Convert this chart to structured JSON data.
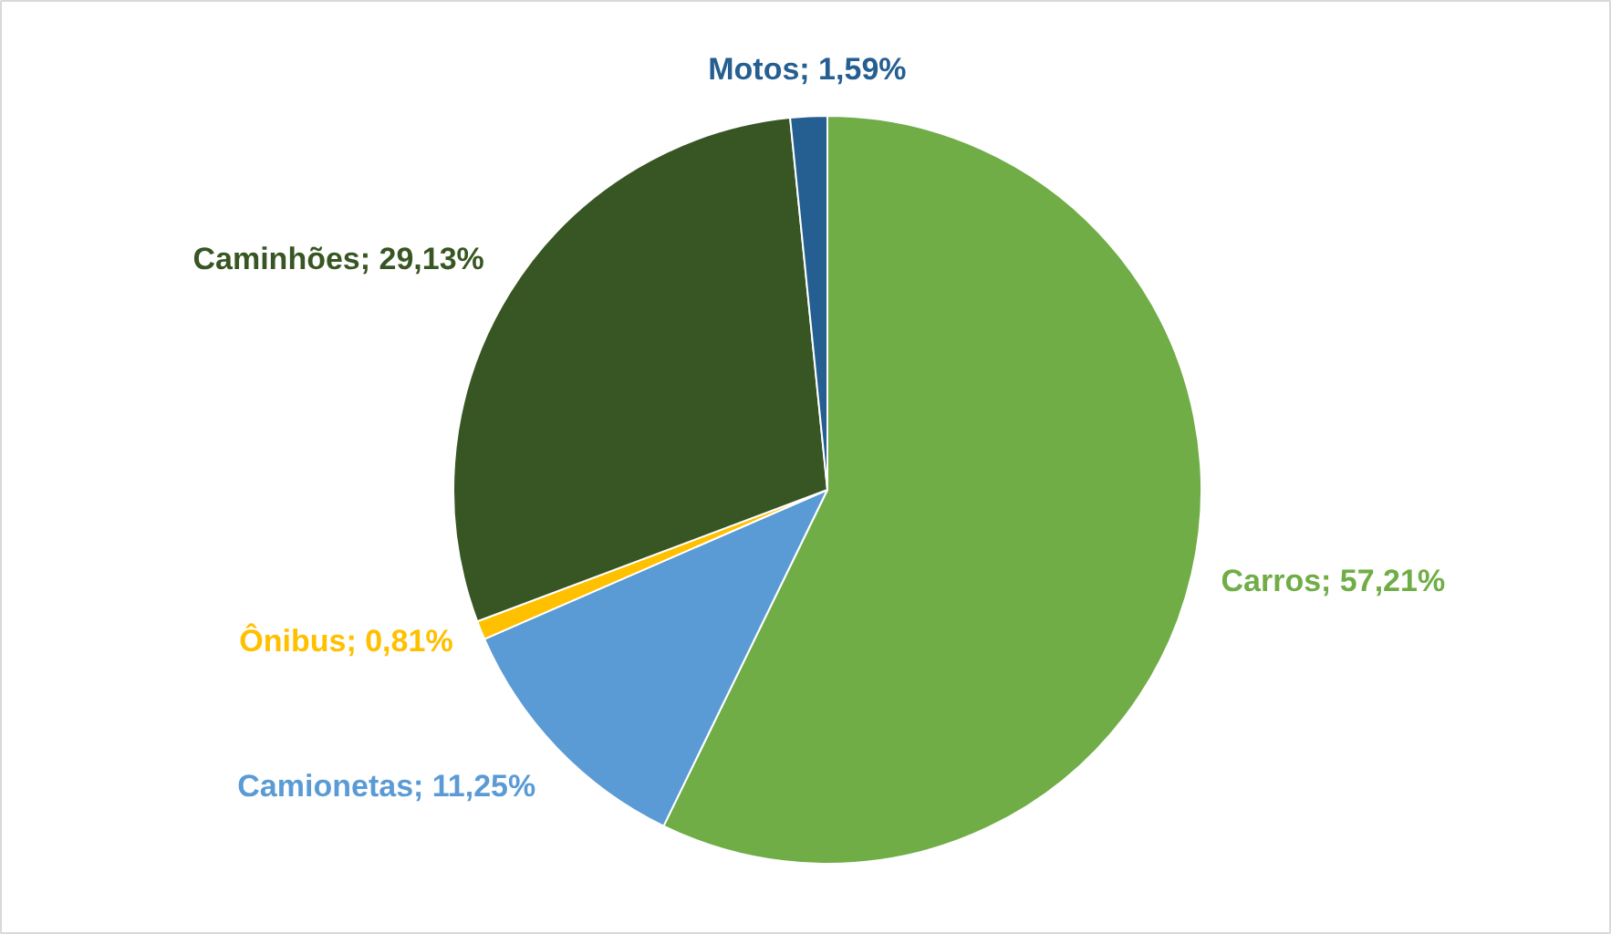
{
  "chart_data": {
    "type": "pie",
    "categories": [
      "Carros",
      "Camionetas",
      "Ônibus",
      "Caminhões",
      "Motos"
    ],
    "values": [
      57.21,
      11.25,
      0.81,
      29.13,
      1.59
    ],
    "colors": [
      "#70ad47",
      "#5b9bd5",
      "#ffc000",
      "#375623",
      "#255e91"
    ],
    "value_labels": [
      "57,21%",
      "11,25%",
      "0,81%",
      "29,13%",
      "1,59%"
    ],
    "legend": false
  }
}
